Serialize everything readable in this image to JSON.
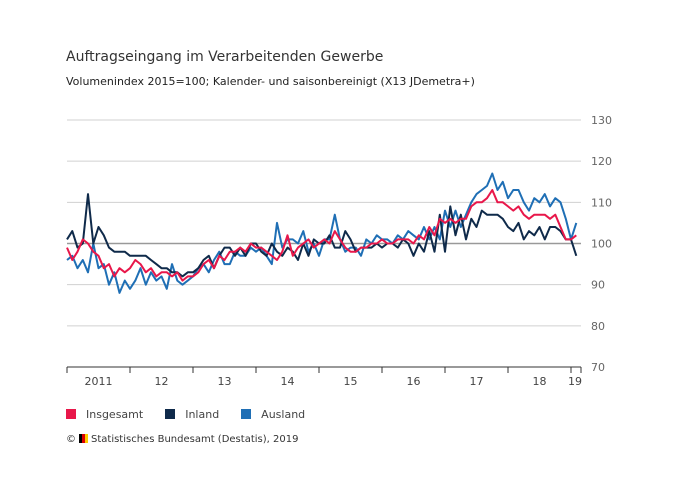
{
  "chart_data": {
    "type": "line",
    "title": "Auftragseingang im Verarbeitenden Gewerbe",
    "subtitle": "Volumenindex 2015=100; Kalender- und saisonbereinigt (X13 JDemetra+)",
    "ylim": [
      70,
      130
    ],
    "yticks": [
      70,
      80,
      90,
      100,
      110,
      120,
      130
    ],
    "xticks": [
      "2011",
      "12",
      "13",
      "14",
      "15",
      "16",
      "17",
      "18",
      "19"
    ],
    "x_start": "2011-01",
    "frequency": "monthly",
    "series": [
      {
        "name": "Insgesamt",
        "color": "#e8174a",
        "values": [
          99,
          96,
          98,
          101,
          100,
          98,
          97,
          94,
          95,
          92,
          94,
          93,
          94,
          96,
          95,
          93,
          94,
          92,
          93,
          93,
          92,
          93,
          91,
          92,
          92,
          93,
          95,
          96,
          94,
          97,
          96,
          98,
          98,
          99,
          98,
          100,
          99,
          99,
          98,
          97,
          96,
          98,
          102,
          97,
          99,
          100,
          101,
          99,
          100,
          101,
          100,
          103,
          101,
          99,
          98,
          98,
          99,
          99,
          100,
          100,
          101,
          100,
          100,
          101,
          101,
          101,
          100,
          102,
          101,
          104,
          102,
          106,
          105,
          106,
          105,
          106,
          106,
          109,
          110,
          110,
          111,
          113,
          110,
          110,
          109,
          108,
          109,
          107,
          106,
          107,
          107,
          107,
          106,
          107,
          104,
          101,
          101,
          102
        ]
      },
      {
        "name": "Inland",
        "color": "#0f2a4a",
        "values": [
          101,
          103,
          99,
          100,
          112,
          100,
          104,
          102,
          99,
          98,
          98,
          98,
          97,
          97,
          97,
          97,
          96,
          95,
          94,
          94,
          93,
          93,
          92,
          93,
          93,
          94,
          96,
          97,
          94,
          97,
          99,
          99,
          97,
          99,
          97,
          100,
          100,
          98,
          97,
          100,
          98,
          97,
          99,
          98,
          96,
          100,
          97,
          101,
          100,
          100,
          102,
          99,
          99,
          103,
          101,
          98,
          99,
          99,
          99,
          100,
          99,
          100,
          100,
          99,
          101,
          100,
          97,
          100,
          98,
          103,
          98,
          107,
          98,
          109,
          102,
          107,
          101,
          106,
          104,
          108,
          107,
          107,
          107,
          106,
          104,
          103,
          105,
          101,
          103,
          102,
          104,
          101,
          104,
          104,
          103,
          101,
          101,
          97
        ]
      },
      {
        "name": "Ausland",
        "color": "#1f6fb5",
        "values": [
          96,
          97,
          94,
          96,
          93,
          100,
          94,
          95,
          90,
          93,
          88,
          91,
          89,
          91,
          94,
          90,
          93,
          91,
          92,
          89,
          95,
          91,
          90,
          91,
          92,
          94,
          95,
          93,
          96,
          98,
          95,
          95,
          98,
          97,
          97,
          99,
          98,
          99,
          97,
          95,
          105,
          99,
          101,
          101,
          100,
          103,
          98,
          100,
          97,
          101,
          101,
          107,
          101,
          98,
          99,
          99,
          97,
          101,
          100,
          102,
          101,
          101,
          100,
          102,
          101,
          103,
          102,
          101,
          104,
          101,
          104,
          101,
          108,
          104,
          108,
          104,
          107,
          110,
          112,
          113,
          114,
          117,
          113,
          115,
          111,
          113,
          113,
          110,
          108,
          111,
          110,
          112,
          109,
          111,
          110,
          106,
          101,
          105
        ]
      }
    ]
  },
  "footer": {
    "copyright": "©",
    "source": "Statistisches Bundesamt (Destatis), 2019"
  }
}
